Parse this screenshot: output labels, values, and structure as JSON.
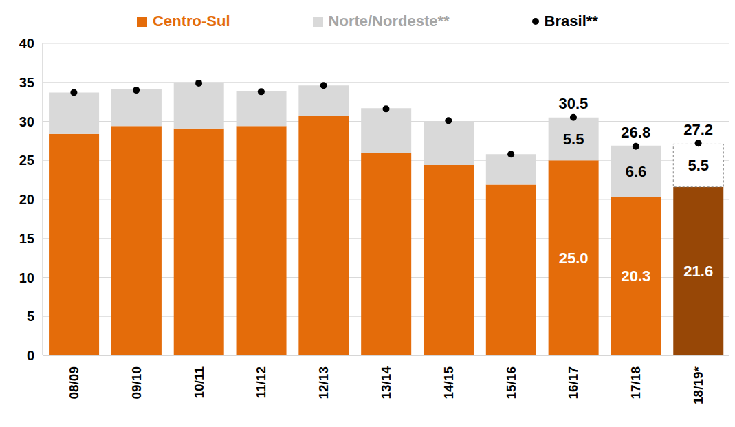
{
  "chart_data": {
    "type": "bar",
    "stacked": true,
    "grid": true,
    "legend": "top",
    "categories": [
      "08/09",
      "09/10",
      "10/11",
      "11/12",
      "12/13",
      "13/14",
      "14/15",
      "15/16",
      "16/17",
      "17/18",
      "18/19*"
    ],
    "ylim": [
      0,
      40
    ],
    "yticks": [
      0,
      5,
      10,
      15,
      20,
      25,
      30,
      35,
      40
    ],
    "data_labels": true,
    "series": [
      {
        "name": "Centro-Sul",
        "type": "bar",
        "color": "#E46C0A",
        "colors": [
          "#E46C0A",
          "#E46C0A",
          "#E46C0A",
          "#E46C0A",
          "#E46C0A",
          "#E46C0A",
          "#E46C0A",
          "#E46C0A",
          "#E46C0A",
          "#E46C0A",
          "#974706"
        ],
        "values": [
          28.4,
          29.4,
          29.1,
          29.4,
          30.7,
          25.9,
          24.4,
          21.9,
          25.0,
          20.3,
          21.6
        ],
        "value_labels": [
          null,
          null,
          null,
          null,
          null,
          null,
          null,
          null,
          "25.0",
          "20.3",
          "21.6"
        ]
      },
      {
        "name": "Norte/Nordeste**",
        "type": "bar",
        "color": "#D9D9D9",
        "colors": [
          "#D9D9D9",
          "#D9D9D9",
          "#D9D9D9",
          "#D9D9D9",
          "#D9D9D9",
          "#D9D9D9",
          "#D9D9D9",
          "#D9D9D9",
          "#D9D9D9",
          "#D9D9D9",
          "#FFFFFF"
        ],
        "values": [
          5.3,
          4.7,
          5.9,
          4.5,
          3.9,
          5.8,
          5.6,
          3.9,
          5.5,
          6.6,
          5.5
        ],
        "value_labels": [
          null,
          null,
          null,
          null,
          null,
          null,
          null,
          null,
          "5.5",
          "6.6",
          "5.5"
        ]
      },
      {
        "name": "Brasil**",
        "type": "scatter",
        "marker": "circle",
        "color": "#000000",
        "values": [
          33.7,
          34.0,
          34.9,
          33.8,
          34.6,
          31.6,
          30.1,
          25.8,
          30.5,
          26.8,
          27.2
        ],
        "value_labels": [
          null,
          null,
          null,
          null,
          null,
          null,
          null,
          null,
          "30.5",
          "26.8",
          "27.2"
        ]
      }
    ]
  }
}
